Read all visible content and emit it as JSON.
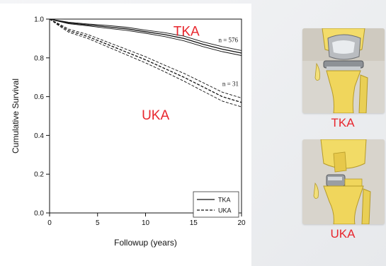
{
  "chart_data": {
    "type": "line",
    "xlabel": "Followup (years)",
    "ylabel": "Cumulative Survival",
    "xlim": [
      0,
      20
    ],
    "ylim": [
      0,
      1.0
    ],
    "x_ticks": [
      0,
      5,
      10,
      15,
      20
    ],
    "y_ticks": [
      0.0,
      0.2,
      0.4,
      0.6,
      0.8,
      1.0
    ],
    "x_tick_labels": [
      "0",
      "5",
      "10",
      "15",
      "20"
    ],
    "y_tick_labels": [
      "0.0",
      "0.2",
      "0.4",
      "0.6",
      "0.8",
      "1.0"
    ],
    "grid": false,
    "legend_position": "bottom-right",
    "series": [
      {
        "name": "TKA",
        "style": "solid",
        "color": "#111111",
        "x": [
          0,
          1,
          2,
          4,
          6,
          8,
          10,
          12,
          14,
          16,
          18,
          20
        ],
        "y": [
          1.0,
          0.99,
          0.98,
          0.97,
          0.96,
          0.95,
          0.935,
          0.92,
          0.9,
          0.87,
          0.845,
          0.825
        ],
        "lower": [
          1.0,
          0.988,
          0.976,
          0.965,
          0.953,
          0.942,
          0.927,
          0.91,
          0.888,
          0.858,
          0.832,
          0.812
        ],
        "upper": [
          1.0,
          0.992,
          0.984,
          0.975,
          0.967,
          0.958,
          0.943,
          0.93,
          0.912,
          0.882,
          0.858,
          0.838
        ],
        "annotation": "n = 576"
      },
      {
        "name": "UKA",
        "style": "dashed",
        "color": "#111111",
        "x": [
          0,
          1,
          2,
          3,
          4,
          6,
          8,
          10,
          12,
          14,
          16,
          18,
          20
        ],
        "y": [
          1.0,
          0.97,
          0.94,
          0.925,
          0.91,
          0.87,
          0.83,
          0.79,
          0.745,
          0.7,
          0.65,
          0.6,
          0.57
        ],
        "lower": [
          1.0,
          0.965,
          0.932,
          0.916,
          0.9,
          0.858,
          0.816,
          0.774,
          0.728,
          0.68,
          0.628,
          0.577,
          0.547
        ],
        "upper": [
          1.0,
          0.975,
          0.948,
          0.934,
          0.92,
          0.882,
          0.844,
          0.806,
          0.762,
          0.72,
          0.672,
          0.623,
          0.593
        ],
        "annotation": "n = 31"
      }
    ],
    "overlay_labels": [
      "TKA",
      "UKA"
    ]
  },
  "colors": {
    "accent": "#e8262d",
    "line": "#111111"
  },
  "photos": [
    {
      "icon": "knee-implant-tka-icon",
      "caption": "TKA"
    },
    {
      "icon": "knee-implant-uka-icon",
      "caption": "UKA"
    }
  ]
}
